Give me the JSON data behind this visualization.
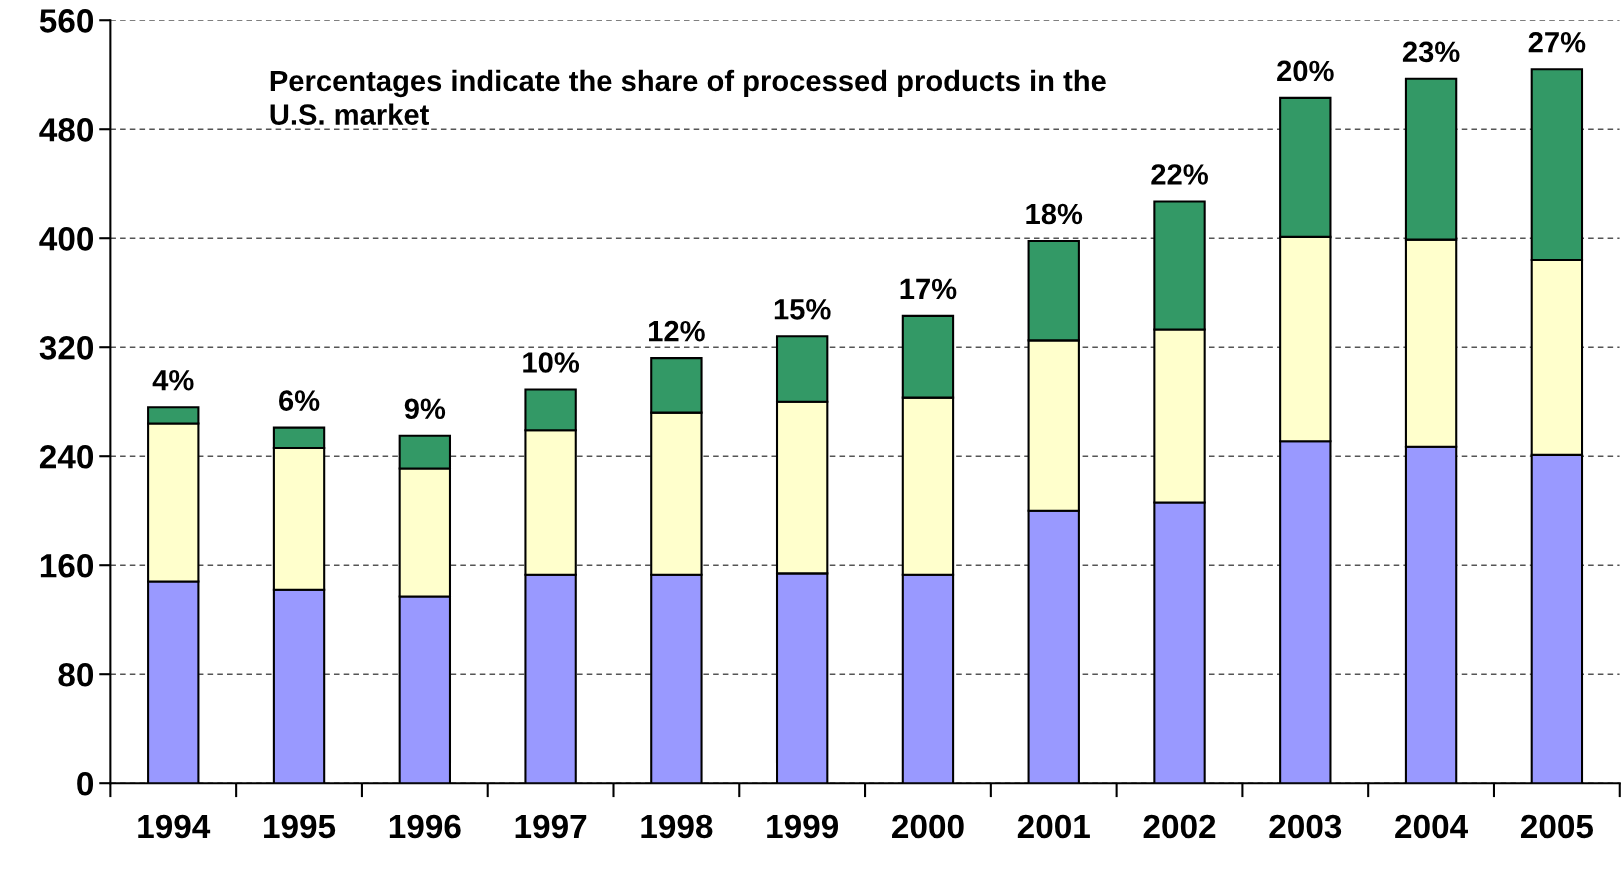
{
  "chart_data": {
    "type": "bar",
    "stacked": true,
    "categories": [
      "1994",
      "1995",
      "1996",
      "1997",
      "1998",
      "1999",
      "2000",
      "2001",
      "2002",
      "2003",
      "2004",
      "2005"
    ],
    "series": [
      {
        "color": "#9999ff",
        "values": [
          148,
          142,
          137,
          153,
          153,
          154,
          153,
          200,
          206,
          251,
          247,
          241
        ]
      },
      {
        "color": "#ffffcc",
        "values": [
          116,
          104,
          94,
          106,
          119,
          126,
          130,
          125,
          127,
          150,
          152,
          143
        ]
      },
      {
        "color": "#339966",
        "values": [
          12,
          15,
          24,
          30,
          40,
          48,
          60,
          73,
          94,
          102,
          118,
          140
        ]
      }
    ],
    "annotations": [
      "Percentages indicate the share of processed products in the U.S. market",
      {
        "text": "4%",
        "x": "1994",
        "y": 276
      },
      {
        "text": "6%",
        "x": "1995",
        "y": 261
      },
      {
        "text": "9%",
        "x": "1996",
        "y": 255
      },
      {
        "text": "10%",
        "x": "1997",
        "y": 289
      },
      {
        "text": "12%",
        "x": "1998",
        "y": 312
      },
      {
        "text": "15%",
        "x": "1999",
        "y": 328
      },
      {
        "text": "17%",
        "x": "2000",
        "y": 343
      },
      {
        "text": "18%",
        "x": "2001",
        "y": 398
      },
      {
        "text": "22%",
        "x": "2002",
        "y": 427
      },
      {
        "text": "20%",
        "x": "2003",
        "y": 503
      },
      {
        "text": "23%",
        "x": "2004",
        "y": 517
      },
      {
        "text": "27%",
        "x": "2005",
        "y": 524
      }
    ],
    "ylim": [
      0,
      560
    ],
    "yticks": [
      0,
      80,
      160,
      240,
      320,
      400,
      480,
      560
    ],
    "grid": "y",
    "legend": false
  }
}
